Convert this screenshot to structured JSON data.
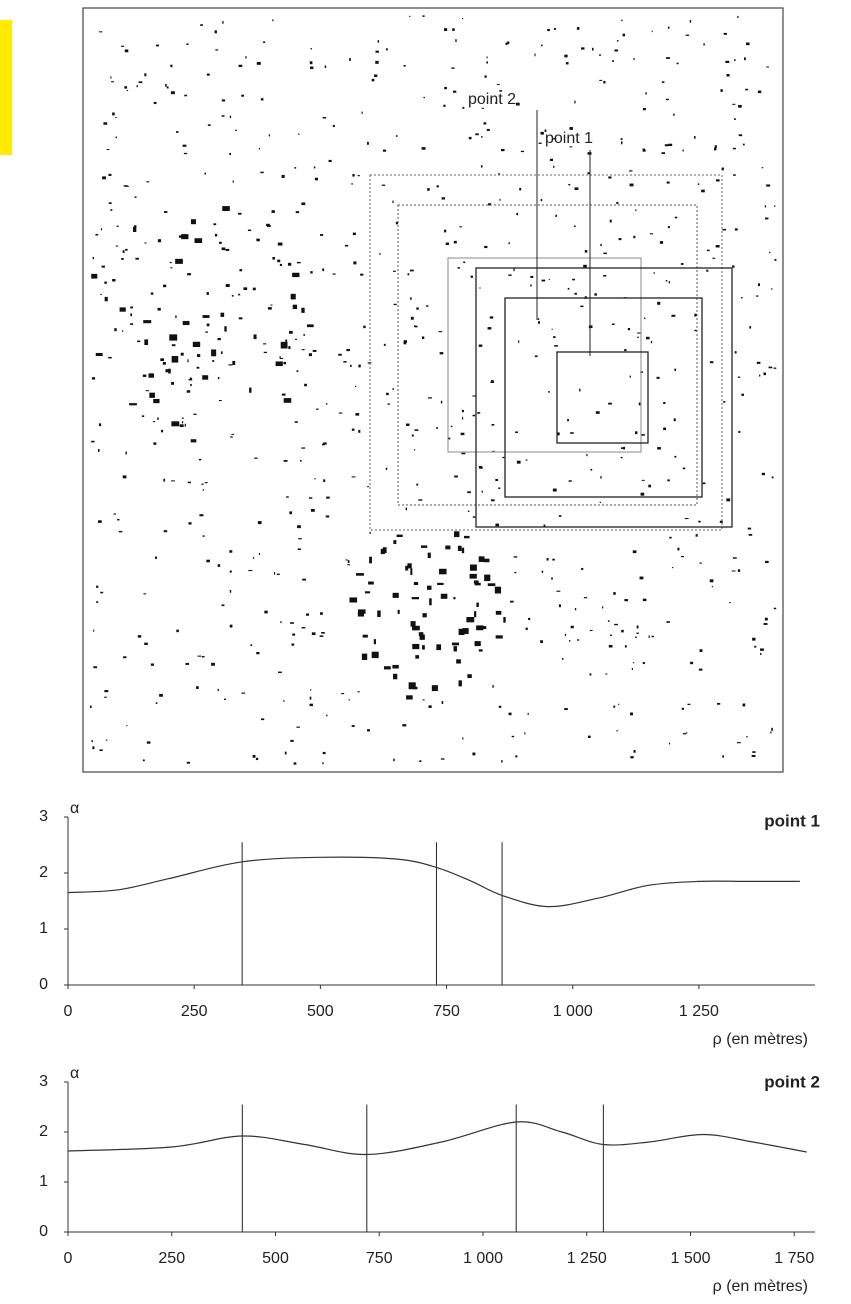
{
  "map": {
    "labels": [
      "point 2",
      "point 1"
    ]
  },
  "chart_data": [
    {
      "type": "line",
      "title": "point 1",
      "ylabel": "α",
      "xlabel": "ρ (en mètres)",
      "x": [
        0,
        100,
        200,
        345,
        500,
        650,
        730,
        800,
        860,
        950,
        1050,
        1150,
        1250,
        1350,
        1450
      ],
      "values": [
        1.65,
        1.7,
        1.9,
        2.2,
        2.28,
        2.25,
        2.1,
        1.85,
        1.6,
        1.4,
        1.55,
        1.78,
        1.85,
        1.85,
        1.85
      ],
      "vlines": [
        345,
        730,
        860
      ],
      "xlim": [
        0,
        1480
      ],
      "xticks": [
        0,
        250,
        500,
        750,
        {
          "value": 1000,
          "label": "1 000"
        },
        {
          "value": 1250,
          "label": "1 250"
        }
      ],
      "ylim": [
        0,
        3
      ],
      "yticks": [
        0,
        1,
        2,
        3
      ],
      "color": "#333"
    },
    {
      "type": "line",
      "title": "point 2",
      "ylabel": "α",
      "xlabel": "ρ (en mètres)",
      "x": [
        0,
        250,
        420,
        570,
        720,
        900,
        1080,
        1190,
        1290,
        1400,
        1530,
        1650,
        1780
      ],
      "values": [
        1.62,
        1.7,
        1.92,
        1.75,
        1.55,
        1.8,
        2.2,
        2.0,
        1.75,
        1.8,
        1.95,
        1.8,
        1.6
      ],
      "vlines": [
        420,
        720,
        1080,
        1290
      ],
      "xlim": [
        0,
        1800
      ],
      "xticks": [
        0,
        250,
        500,
        750,
        {
          "value": 1000,
          "label": "1 000"
        },
        {
          "value": 1250,
          "label": "1 250"
        },
        {
          "value": 1500,
          "label": "1 500"
        },
        {
          "value": 1750,
          "label": "1 750"
        }
      ],
      "ylim": [
        0,
        3
      ],
      "yticks": [
        0,
        1,
        2,
        3
      ],
      "color": "#333"
    }
  ]
}
